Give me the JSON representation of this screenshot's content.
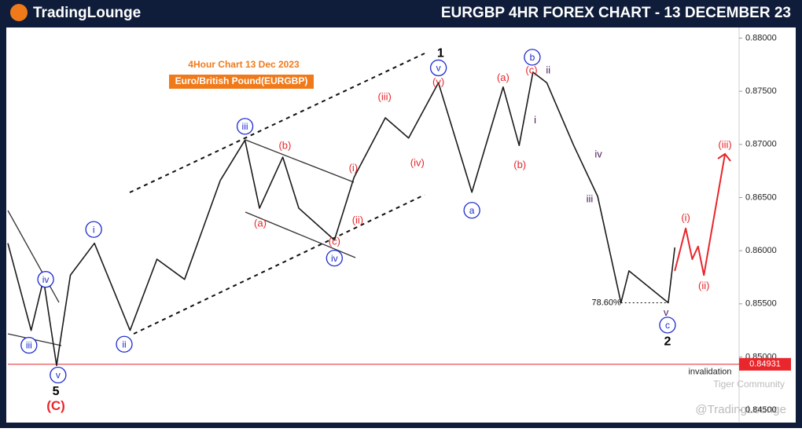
{
  "header": {
    "logo": "TradingLounge"
  },
  "watermarks": [
    "Tiger Community",
    "@TradingLounge"
  ],
  "chart_data": {
    "type": "line",
    "title": "EURGBP 4HR FOREX CHART - 13 DECEMBER 23",
    "subtitle": "4Hour Chart 13 Dec 2023",
    "subtitle2": "Euro/British Pound(EURGBP)",
    "color": "#1a1a1a",
    "x": [
      0,
      3.2,
      4.9,
      6.7,
      8.6,
      11.9,
      16.8,
      20.5,
      24.3,
      29.2,
      32.6,
      34.6,
      37.8,
      40.0,
      44.9,
      47.6,
      51.9,
      55.1,
      59.2,
      63.8,
      68.1,
      70.3,
      72.2,
      74.1,
      77.8,
      81.1,
      84.3,
      85.4,
      90.8,
      91.7
    ],
    "values": [
      0.8607,
      0.8525,
      0.8573,
      0.8492,
      0.8577,
      0.8607,
      0.8525,
      0.8592,
      0.8573,
      0.8666,
      0.8704,
      0.864,
      0.8688,
      0.864,
      0.861,
      0.8669,
      0.8725,
      0.8706,
      0.8758,
      0.8655,
      0.8754,
      0.8699,
      0.8768,
      0.8758,
      0.8699,
      0.8651,
      0.8551,
      0.8581,
      0.8551,
      0.8603
    ],
    "projection": {
      "color": "#e8262b",
      "x": [
        91.7,
        93.2,
        94.1,
        94.9,
        95.7,
        98.6
      ],
      "values": [
        0.8581,
        0.8621,
        0.8592,
        0.8604,
        0.8577,
        0.8691
      ]
    },
    "xlim": [
      0,
      100
    ],
    "ylim": [
      0.8439,
      0.881
    ],
    "yticks": [
      {
        "value": 0.88,
        "label": "0.88000"
      },
      {
        "value": 0.875,
        "label": "0.87500"
      },
      {
        "value": 0.87,
        "label": "0.87000"
      },
      {
        "value": 0.865,
        "label": "0.86500"
      },
      {
        "value": 0.86,
        "label": "0.86000"
      },
      {
        "value": 0.855,
        "label": "0.85500"
      },
      {
        "value": 0.85,
        "label": "0.85000"
      },
      {
        "value": 0.845,
        "label": "0.84500"
      }
    ],
    "level": {
      "label": "78.60%",
      "value": 0.8551,
      "x": [
        84.3,
        90.8
      ]
    },
    "invalidation": {
      "text": "invalidation",
      "value": 0.84931,
      "color": "#e8262b"
    },
    "annotations": [
      {
        "text": "iii",
        "x": 2.9,
        "y": 0.8511,
        "style": "blue-circle"
      },
      {
        "text": "iv",
        "x": 5.2,
        "y": 0.8573,
        "style": "blue-circle"
      },
      {
        "text": "v",
        "x": 6.9,
        "y": 0.8483,
        "style": "blue-circle"
      },
      {
        "text": "5",
        "x": 6.6,
        "y": 0.8468,
        "style": "black"
      },
      {
        "text": "(C)",
        "x": 6.6,
        "y": 0.8454,
        "style": "red-big"
      },
      {
        "text": "i",
        "x": 11.8,
        "y": 0.862,
        "style": "blue-circle"
      },
      {
        "text": "ii",
        "x": 16.0,
        "y": 0.8512,
        "style": "blue-circle"
      },
      {
        "text": "iii",
        "x": 32.6,
        "y": 0.8717,
        "style": "blue-circle"
      },
      {
        "text": "iv",
        "x": 44.9,
        "y": 0.8593,
        "style": "blue-circle"
      },
      {
        "text": "(b)",
        "x": 38.1,
        "y": 0.8699,
        "style": "red"
      },
      {
        "text": "(a)",
        "x": 34.7,
        "y": 0.8626,
        "style": "red"
      },
      {
        "text": "(c)",
        "x": 44.9,
        "y": 0.8609,
        "style": "red"
      },
      {
        "text": "(i)",
        "x": 47.5,
        "y": 0.8678,
        "style": "red"
      },
      {
        "text": "(ii)",
        "x": 48.1,
        "y": 0.8629,
        "style": "red"
      },
      {
        "text": "(iii)",
        "x": 51.8,
        "y": 0.8745,
        "style": "red"
      },
      {
        "text": "(iv)",
        "x": 56.3,
        "y": 0.8683,
        "style": "red"
      },
      {
        "text": "(v)",
        "x": 59.2,
        "y": 0.8759,
        "style": "red"
      },
      {
        "text": "v",
        "x": 59.2,
        "y": 0.8772,
        "style": "blue-circle"
      },
      {
        "text": "1",
        "x": 59.5,
        "y": 0.8786,
        "style": "black"
      },
      {
        "text": "a",
        "x": 63.8,
        "y": 0.8638,
        "style": "blue-circle"
      },
      {
        "text": "(a)",
        "x": 68.1,
        "y": 0.8763,
        "style": "red"
      },
      {
        "text": "(b)",
        "x": 70.4,
        "y": 0.8681,
        "style": "red"
      },
      {
        "text": "(c)",
        "x": 72.0,
        "y": 0.877,
        "style": "red"
      },
      {
        "text": "b",
        "x": 72.1,
        "y": 0.8782,
        "style": "blue-circle"
      },
      {
        "text": "ii",
        "x": 74.3,
        "y": 0.877,
        "style": "purple"
      },
      {
        "text": "i",
        "x": 72.5,
        "y": 0.8723,
        "style": "purple"
      },
      {
        "text": "iv",
        "x": 81.2,
        "y": 0.8691,
        "style": "purple"
      },
      {
        "text": "iii",
        "x": 80.0,
        "y": 0.8649,
        "style": "purple"
      },
      {
        "text": "v",
        "x": 90.5,
        "y": 0.8542,
        "style": "purple"
      },
      {
        "text": "c",
        "x": 90.7,
        "y": 0.853,
        "style": "blue-circle"
      },
      {
        "text": "2",
        "x": 90.7,
        "y": 0.8515,
        "style": "black"
      },
      {
        "text": "(i)",
        "x": 93.2,
        "y": 0.8631,
        "style": "red"
      },
      {
        "text": "(ii)",
        "x": 95.7,
        "y": 0.8567,
        "style": "red"
      },
      {
        "text": "(iii)",
        "x": 98.6,
        "y": 0.87,
        "style": "red"
      }
    ]
  }
}
